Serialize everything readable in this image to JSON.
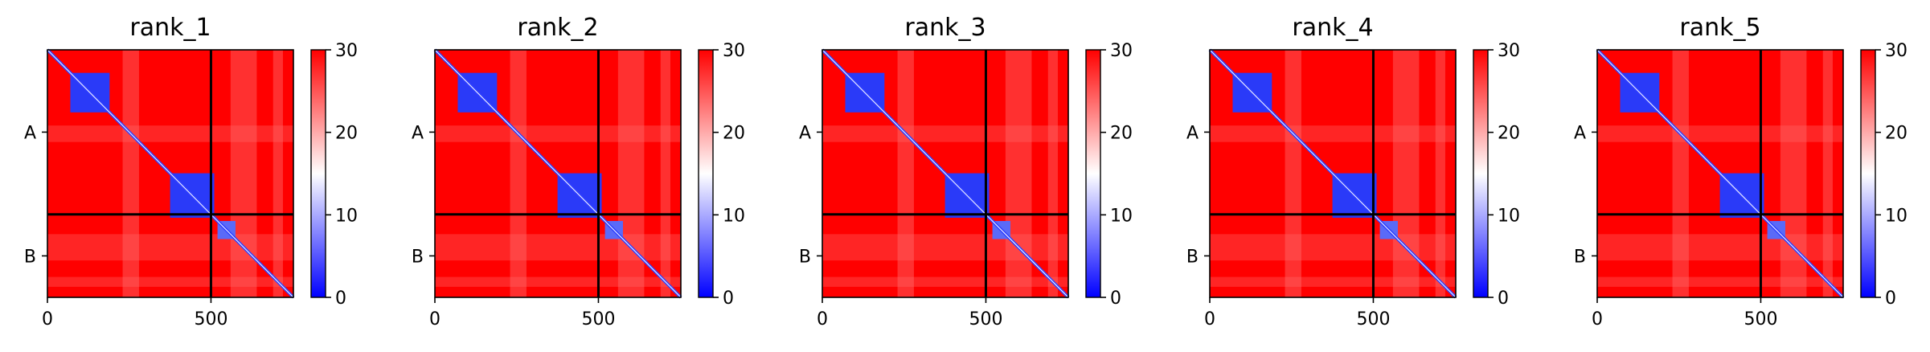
{
  "chart_data": [
    {
      "type": "heatmap",
      "title": "rank_1",
      "x_ticks": [
        {
          "value": 0,
          "label": "0"
        },
        {
          "value": 500,
          "label": "500"
        }
      ],
      "y_ticks": [
        {
          "label": "A"
        },
        {
          "label": "B"
        }
      ],
      "chain_boundary": 500,
      "xlim": [
        0,
        752
      ],
      "ylim": [
        752,
        0
      ],
      "colorbar": {
        "range": [
          0,
          30
        ],
        "ticks": [
          0,
          10,
          20,
          30
        ],
        "colors": [
          "#0000ff",
          "#ffffff",
          "#ff0000"
        ]
      },
      "grid": false,
      "legend": "none"
    },
    {
      "type": "heatmap",
      "title": "rank_2",
      "x_ticks": [
        {
          "value": 0,
          "label": "0"
        },
        {
          "value": 500,
          "label": "500"
        }
      ],
      "y_ticks": [
        {
          "label": "A"
        },
        {
          "label": "B"
        }
      ],
      "chain_boundary": 500,
      "xlim": [
        0,
        752
      ],
      "ylim": [
        752,
        0
      ],
      "colorbar": {
        "range": [
          0,
          30
        ],
        "ticks": [
          0,
          10,
          20,
          30
        ],
        "colors": [
          "#0000ff",
          "#ffffff",
          "#ff0000"
        ]
      },
      "grid": false,
      "legend": "none"
    },
    {
      "type": "heatmap",
      "title": "rank_3",
      "x_ticks": [
        {
          "value": 0,
          "label": "0"
        },
        {
          "value": 500,
          "label": "500"
        }
      ],
      "y_ticks": [
        {
          "label": "A"
        },
        {
          "label": "B"
        }
      ],
      "chain_boundary": 500,
      "xlim": [
        0,
        752
      ],
      "ylim": [
        752,
        0
      ],
      "colorbar": {
        "range": [
          0,
          30
        ],
        "ticks": [
          0,
          10,
          20,
          30
        ],
        "colors": [
          "#0000ff",
          "#ffffff",
          "#ff0000"
        ]
      },
      "grid": false,
      "legend": "none"
    },
    {
      "type": "heatmap",
      "title": "rank_4",
      "x_ticks": [
        {
          "value": 0,
          "label": "0"
        },
        {
          "value": 500,
          "label": "500"
        }
      ],
      "y_ticks": [
        {
          "label": "A"
        },
        {
          "label": "B"
        }
      ],
      "chain_boundary": 500,
      "xlim": [
        0,
        752
      ],
      "ylim": [
        752,
        0
      ],
      "colorbar": {
        "range": [
          0,
          30
        ],
        "ticks": [
          0,
          10,
          20,
          30
        ],
        "colors": [
          "#0000ff",
          "#ffffff",
          "#ff0000"
        ]
      },
      "grid": false,
      "legend": "none"
    },
    {
      "type": "heatmap",
      "title": "rank_5",
      "x_ticks": [
        {
          "value": 0,
          "label": "0"
        },
        {
          "value": 500,
          "label": "500"
        }
      ],
      "y_ticks": [
        {
          "label": "A"
        },
        {
          "label": "B"
        }
      ],
      "chain_boundary": 500,
      "xlim": [
        0,
        752
      ],
      "ylim": [
        752,
        0
      ],
      "colorbar": {
        "range": [
          0,
          30
        ],
        "ticks": [
          0,
          10,
          20,
          30
        ],
        "colors": [
          "#0000ff",
          "#ffffff",
          "#ff0000"
        ]
      },
      "grid": false,
      "legend": "none"
    }
  ]
}
